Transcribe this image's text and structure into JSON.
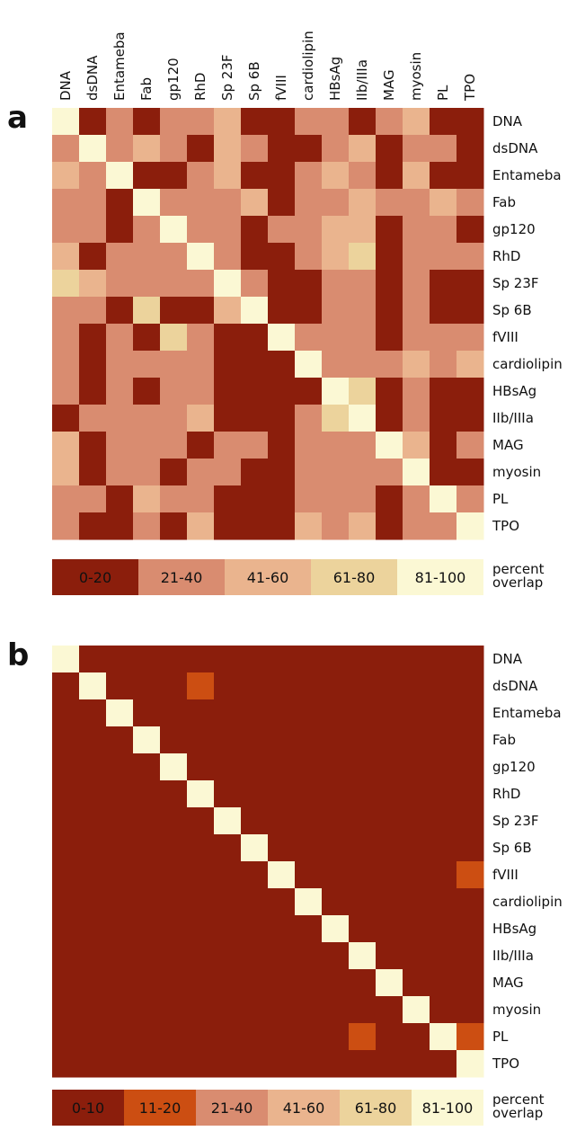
{
  "chart_data": [
    {
      "type": "heatmap",
      "panel": "a",
      "x": [
        "DNA",
        "dsDNA",
        "Entameba",
        "Fab",
        "gp120",
        "RhD",
        "Sp 23F",
        "Sp 6B",
        "fVIII",
        "cardiolipin",
        "HBsAg",
        "IIb/IIIa",
        "MAG",
        "myosin",
        "PL",
        "TPO"
      ],
      "y": [
        "DNA",
        "dsDNA",
        "Entameba",
        "Fab",
        "gp120",
        "RhD",
        "Sp 23F",
        "Sp 6B",
        "fVIII",
        "cardiolipin",
        "HBsAg",
        "IIb/IIIa",
        "MAG",
        "myosin",
        "PL",
        "TPO"
      ],
      "values": [
        [
          90,
          10,
          30,
          10,
          30,
          30,
          50,
          10,
          10,
          30,
          30,
          10,
          30,
          50,
          10,
          10
        ],
        [
          30,
          90,
          30,
          50,
          30,
          10,
          50,
          30,
          10,
          10,
          30,
          50,
          10,
          30,
          30,
          10
        ],
        [
          50,
          30,
          90,
          10,
          10,
          30,
          50,
          10,
          10,
          30,
          50,
          30,
          10,
          50,
          10,
          10
        ],
        [
          30,
          30,
          10,
          90,
          30,
          30,
          30,
          50,
          10,
          30,
          30,
          50,
          30,
          30,
          50,
          30
        ],
        [
          30,
          30,
          10,
          30,
          90,
          30,
          30,
          10,
          30,
          30,
          50,
          50,
          10,
          30,
          30,
          10
        ],
        [
          50,
          10,
          30,
          30,
          30,
          90,
          30,
          10,
          10,
          30,
          50,
          70,
          10,
          30,
          30,
          30
        ],
        [
          70,
          50,
          30,
          30,
          30,
          30,
          90,
          30,
          10,
          10,
          30,
          30,
          10,
          30,
          10,
          10
        ],
        [
          30,
          30,
          10,
          70,
          10,
          10,
          50,
          90,
          10,
          10,
          30,
          30,
          10,
          30,
          10,
          10
        ],
        [
          30,
          10,
          30,
          10,
          70,
          30,
          10,
          10,
          90,
          30,
          30,
          30,
          10,
          30,
          30,
          30
        ],
        [
          30,
          10,
          30,
          30,
          30,
          30,
          10,
          10,
          10,
          90,
          30,
          30,
          30,
          50,
          30,
          50
        ],
        [
          30,
          10,
          30,
          10,
          30,
          30,
          10,
          10,
          10,
          10,
          90,
          70,
          10,
          30,
          10,
          10
        ],
        [
          10,
          30,
          30,
          30,
          30,
          50,
          10,
          10,
          10,
          30,
          70,
          90,
          10,
          30,
          10,
          10
        ],
        [
          50,
          10,
          30,
          30,
          30,
          10,
          30,
          30,
          10,
          30,
          30,
          30,
          90,
          50,
          10,
          30
        ],
        [
          50,
          10,
          30,
          30,
          10,
          30,
          30,
          10,
          10,
          30,
          30,
          30,
          30,
          90,
          10,
          10
        ],
        [
          30,
          30,
          10,
          50,
          30,
          30,
          10,
          10,
          10,
          30,
          30,
          30,
          10,
          30,
          90,
          30
        ],
        [
          30,
          10,
          10,
          30,
          10,
          50,
          10,
          10,
          10,
          50,
          30,
          50,
          10,
          30,
          30,
          90
        ]
      ],
      "legend": {
        "title": "percent overlap",
        "bins": [
          {
            "label": "0-20",
            "min": 0,
            "max": 20,
            "color": "#8b1e0c",
            "text_color": "#f0d8c8"
          },
          {
            "label": "21-40",
            "min": 21,
            "max": 40,
            "color": "#d98c70",
            "text_color": "#f6e6dc"
          },
          {
            "label": "41-60",
            "min": 41,
            "max": 60,
            "color": "#eab48e",
            "text_color": "#fbeee2"
          },
          {
            "label": "61-80",
            "min": 61,
            "max": 80,
            "color": "#ecd39c",
            "text_color": "#222"
          },
          {
            "label": "81-100",
            "min": 81,
            "max": 100,
            "color": "#fbf8d4",
            "text_color": "#222"
          }
        ]
      }
    },
    {
      "type": "heatmap",
      "panel": "b",
      "y": [
        "DNA",
        "dsDNA",
        "Entameba",
        "Fab",
        "gp120",
        "RhD",
        "Sp 23F",
        "Sp 6B",
        "fVIII",
        "cardiolipin",
        "HBsAg",
        "IIb/IIIa",
        "MAG",
        "myosin",
        "PL",
        "TPO"
      ],
      "values": [
        [
          95,
          5,
          5,
          5,
          5,
          5,
          5,
          5,
          5,
          5,
          5,
          5,
          5,
          5,
          5,
          5
        ],
        [
          5,
          95,
          5,
          5,
          5,
          15,
          5,
          5,
          5,
          5,
          5,
          5,
          5,
          5,
          5,
          5
        ],
        [
          5,
          5,
          95,
          5,
          5,
          5,
          5,
          5,
          5,
          5,
          5,
          5,
          5,
          5,
          5,
          5
        ],
        [
          5,
          5,
          5,
          95,
          5,
          5,
          5,
          5,
          5,
          5,
          5,
          5,
          5,
          5,
          5,
          5
        ],
        [
          5,
          5,
          5,
          5,
          95,
          5,
          5,
          5,
          5,
          5,
          5,
          5,
          5,
          5,
          5,
          5
        ],
        [
          5,
          5,
          5,
          5,
          5,
          95,
          5,
          5,
          5,
          5,
          5,
          5,
          5,
          5,
          5,
          5
        ],
        [
          5,
          5,
          5,
          5,
          5,
          5,
          95,
          5,
          5,
          5,
          5,
          5,
          5,
          5,
          5,
          5
        ],
        [
          5,
          5,
          5,
          5,
          5,
          5,
          5,
          95,
          5,
          5,
          5,
          5,
          5,
          5,
          5,
          5
        ],
        [
          5,
          5,
          5,
          5,
          5,
          5,
          5,
          5,
          95,
          5,
          5,
          5,
          5,
          5,
          5,
          15
        ],
        [
          5,
          5,
          5,
          5,
          5,
          5,
          5,
          5,
          5,
          95,
          5,
          5,
          5,
          5,
          5,
          5
        ],
        [
          5,
          5,
          5,
          5,
          5,
          5,
          5,
          5,
          5,
          5,
          95,
          5,
          5,
          5,
          5,
          5
        ],
        [
          5,
          5,
          5,
          5,
          5,
          5,
          5,
          5,
          5,
          5,
          5,
          95,
          5,
          5,
          5,
          5
        ],
        [
          5,
          5,
          5,
          5,
          5,
          5,
          5,
          5,
          5,
          5,
          5,
          5,
          95,
          5,
          5,
          5
        ],
        [
          5,
          5,
          5,
          5,
          5,
          5,
          5,
          5,
          5,
          5,
          5,
          5,
          5,
          95,
          5,
          5
        ],
        [
          5,
          5,
          5,
          5,
          5,
          5,
          5,
          5,
          5,
          5,
          5,
          15,
          5,
          5,
          95,
          15
        ],
        [
          5,
          5,
          5,
          5,
          5,
          5,
          5,
          5,
          5,
          5,
          5,
          5,
          5,
          5,
          5,
          95
        ]
      ],
      "legend": {
        "title": "percent overlap",
        "bins": [
          {
            "label": "0-10",
            "min": 0,
            "max": 10,
            "color": "#8b1e0c",
            "text_color": "#f0d8c8"
          },
          {
            "label": "11-20",
            "min": 11,
            "max": 20,
            "color": "#cc4e12",
            "text_color": "#f6e0d0"
          },
          {
            "label": "21-40",
            "min": 21,
            "max": 40,
            "color": "#d98c70",
            "text_color": "#f6e6dc"
          },
          {
            "label": "41-60",
            "min": 41,
            "max": 60,
            "color": "#eab48e",
            "text_color": "#fbeee2"
          },
          {
            "label": "61-80",
            "min": 61,
            "max": 80,
            "color": "#ecd39c",
            "text_color": "#222"
          },
          {
            "label": "81-100",
            "min": 81,
            "max": 100,
            "color": "#fbf8d4",
            "text_color": "#222"
          }
        ]
      }
    }
  ]
}
